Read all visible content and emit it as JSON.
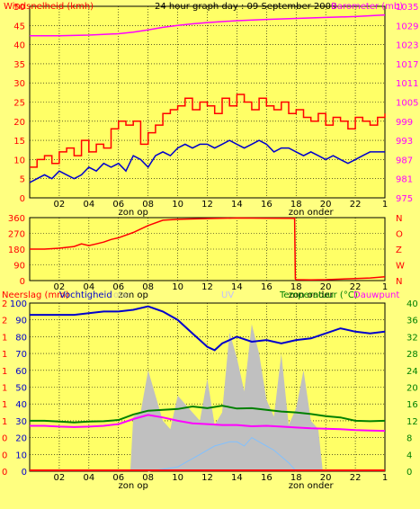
{
  "page": {
    "background": "#ffff80",
    "plot_background": "#ffff66",
    "grid_color": "#000000"
  },
  "chart_data": [
    {
      "type": "line",
      "title": "24 hour graph day : 09 September 2009",
      "left_axis_label": "Windsnelheid (kmh)",
      "right_axis_label": "Barometer (mb)",
      "x_ticks": [
        "02",
        "04",
        "06",
        "08",
        "10",
        "12",
        "14",
        "16",
        "18",
        "20",
        "22",
        "1"
      ],
      "x_annotations": [
        {
          "text": "zon op",
          "near": "07"
        },
        {
          "text": "zon onder",
          "near": "19"
        }
      ],
      "left_ylim": [
        0,
        50
      ],
      "left_ticks": [
        "0",
        "5",
        "10",
        "15",
        "20",
        "25",
        "30",
        "35",
        "40",
        "45",
        "50"
      ],
      "right_ylim": [
        975,
        1035
      ],
      "right_ticks": [
        "975",
        "981",
        "987",
        "993",
        "999",
        "1005",
        "1011",
        "1017",
        "1023",
        "1029",
        "1035"
      ],
      "grid": true,
      "series": [
        {
          "axis": "right",
          "color": "#ff00ff",
          "x": [
            0,
            2,
            4,
            6,
            7,
            8,
            9,
            10,
            11,
            12,
            13,
            14,
            16,
            18,
            20,
            22,
            24
          ],
          "y": [
            1025.8,
            1025.8,
            1026.0,
            1026.4,
            1026.9,
            1027.6,
            1028.4,
            1029.0,
            1029.5,
            1029.9,
            1030.2,
            1030.5,
            1030.9,
            1031.2,
            1031.5,
            1031.8,
            1032.3
          ]
        },
        {
          "axis": "left",
          "color": "#ff0000",
          "x": [
            0,
            0.5,
            1,
            1.5,
            2,
            2.5,
            3,
            3.5,
            4,
            4.5,
            5,
            5.5,
            6,
            6.5,
            7,
            7.5,
            8,
            8.5,
            9,
            9.5,
            10,
            10.5,
            11,
            11.5,
            12,
            12.5,
            13,
            13.5,
            14,
            14.5,
            15,
            15.5,
            16,
            16.5,
            17,
            17.5,
            18,
            18.5,
            19,
            19.5,
            20,
            20.5,
            21,
            21.5,
            22,
            22.5,
            23,
            23.5,
            24
          ],
          "y": [
            8,
            10,
            11,
            9,
            12,
            13,
            11,
            15,
            12,
            14,
            13,
            18,
            20,
            19,
            20,
            14,
            17,
            19,
            22,
            23,
            24,
            26,
            23,
            25,
            24,
            22,
            26,
            24,
            27,
            25,
            23,
            26,
            24,
            23,
            25,
            22,
            23,
            21,
            20,
            22,
            19,
            21,
            20,
            18,
            21,
            20,
            19,
            21,
            22
          ]
        },
        {
          "axis": "left",
          "color": "#0000cc",
          "x": [
            0,
            0.5,
            1,
            1.5,
            2,
            2.5,
            3,
            3.5,
            4,
            4.5,
            5,
            5.5,
            6,
            6.5,
            7,
            7.5,
            8,
            8.5,
            9,
            9.5,
            10,
            10.5,
            11,
            11.5,
            12,
            12.5,
            13,
            13.5,
            14,
            14.5,
            15,
            15.5,
            16,
            16.5,
            17,
            17.5,
            18,
            18.5,
            19,
            19.5,
            20,
            20.5,
            21,
            21.5,
            22,
            22.5,
            23,
            23.5,
            24
          ],
          "y": [
            4,
            5,
            6,
            5,
            7,
            6,
            5,
            6,
            8,
            7,
            9,
            8,
            9,
            7,
            11,
            10,
            8,
            11,
            12,
            11,
            13,
            14,
            13,
            14,
            14,
            13,
            14,
            15,
            14,
            13,
            14,
            15,
            14,
            12,
            13,
            13,
            12,
            11,
            12,
            11,
            10,
            11,
            10,
            9,
            10,
            11,
            12,
            12,
            12
          ]
        }
      ]
    },
    {
      "type": "line",
      "left_ylim": [
        0,
        360
      ],
      "left_ticks": [
        "0",
        "90",
        "180",
        "270",
        "360"
      ],
      "right_ticks": [
        "N",
        "W",
        "Z",
        "O",
        "N"
      ],
      "x_ticks": [
        "02",
        "04",
        "06",
        "08",
        "10",
        "12",
        "14",
        "16",
        "18",
        "20",
        "22",
        "1"
      ],
      "x_annotations": [
        {
          "text": "zon op",
          "near": "07"
        },
        {
          "text": "zon onder",
          "near": "19"
        }
      ],
      "grid": true,
      "series": [
        {
          "color": "#ff0000",
          "x": [
            0,
            1,
            2,
            3,
            3.5,
            4,
            4.5,
            5,
            5.5,
            6,
            7,
            8,
            9,
            10,
            12,
            14,
            16,
            17.9,
            17.95,
            18,
            19,
            20,
            21,
            22,
            23,
            24
          ],
          "y": [
            180,
            180,
            185,
            195,
            210,
            200,
            210,
            220,
            235,
            245,
            275,
            315,
            345,
            350,
            355,
            358,
            357,
            356,
            10,
            5,
            4,
            5,
            8,
            12,
            15,
            22
          ]
        }
      ]
    },
    {
      "type": "line",
      "left_axis_label": "Neerslag (mm)",
      "second_left_label": "Vochtigheid",
      "faint_labels": [
        "olar",
        "UV"
      ],
      "right_axis_label": "Temperatuur (°C)",
      "second_right_label": "Dauwpunt",
      "x_ticks": [
        "02",
        "04",
        "06",
        "08",
        "10",
        "12",
        "14",
        "16",
        "18",
        "20",
        "22",
        "1"
      ],
      "x_annotations": [
        {
          "text": "zon op",
          "near": "07"
        },
        {
          "text": "zon onder",
          "near": "19"
        }
      ],
      "humidity_ticks": [
        "0",
        "10",
        "20",
        "30",
        "40",
        "50",
        "60",
        "70",
        "80",
        "90",
        "100"
      ],
      "humidity_ylim": [
        0,
        100
      ],
      "rain_ticks": [
        "0",
        "0",
        "0",
        "1",
        "1",
        "1",
        "1",
        "1",
        "1",
        "2",
        "2"
      ],
      "right_ticks": [
        "0",
        "4",
        "8",
        "12",
        "16",
        "20",
        "24",
        "28",
        "32",
        "36",
        "40"
      ],
      "right_ylim": [
        0,
        40
      ],
      "grid": true,
      "series": [
        {
          "name": "Vochtigheid",
          "axis": "humidity",
          "color": "#0000cc",
          "x": [
            0,
            1,
            2,
            3,
            4,
            5,
            6,
            7,
            8,
            9,
            10,
            11,
            12,
            12.5,
            13,
            14,
            15,
            16,
            17,
            18,
            19,
            20,
            21,
            22,
            23,
            24
          ],
          "y": [
            93,
            93,
            93,
            93,
            94,
            95,
            95,
            96,
            98,
            95,
            90,
            82,
            74,
            72,
            76,
            80,
            77,
            78,
            76,
            78,
            79,
            82,
            85,
            83,
            82,
            83
          ]
        },
        {
          "name": "Temperatuur",
          "axis": "right",
          "color": "#008000",
          "x": [
            0,
            1,
            2,
            3,
            4,
            5,
            6,
            7,
            8,
            9,
            10,
            11,
            12,
            13,
            14,
            15,
            16,
            17,
            18,
            19,
            20,
            21,
            22,
            23,
            24
          ],
          "y": [
            12,
            12,
            11.8,
            11.6,
            11.8,
            11.9,
            12.2,
            13.5,
            14.4,
            14.6,
            14.8,
            15.4,
            15.0,
            15.6,
            14.9,
            15.0,
            14.6,
            14.2,
            14.0,
            13.6,
            13.1,
            12.8,
            12.0,
            11.9,
            12.0
          ]
        },
        {
          "name": "Dauwpunt",
          "axis": "right",
          "color": "#ff00ff",
          "x": [
            0,
            1,
            2,
            3,
            4,
            5,
            6,
            7,
            8,
            9,
            10,
            11,
            12,
            13,
            14,
            15,
            16,
            17,
            18,
            19,
            20,
            21,
            22,
            23,
            24
          ],
          "y": [
            10.8,
            10.8,
            10.6,
            10.5,
            10.6,
            10.8,
            11.2,
            12.4,
            13.4,
            12.8,
            12.0,
            11.4,
            11.2,
            11.0,
            11.0,
            10.7,
            10.8,
            10.6,
            10.4,
            10.2,
            10.1,
            10.0,
            9.8,
            9.7,
            9.6
          ]
        },
        {
          "name": "Solar",
          "axis": "right",
          "color": "#c0c0c0",
          "type": "area",
          "x": [
            6.8,
            7,
            7.5,
            8,
            8.5,
            9,
            9.5,
            10,
            10.5,
            11,
            11.5,
            12,
            12.5,
            13,
            13.5,
            14,
            14.5,
            15,
            15.5,
            16,
            16.5,
            17,
            17.5,
            18,
            18.5,
            19,
            19.5,
            19.8
          ],
          "y": [
            0,
            13,
            14,
            24,
            18,
            12,
            10,
            18,
            16,
            14,
            12,
            22,
            11,
            14,
            33,
            27,
            19,
            35,
            28,
            17,
            13,
            28,
            11,
            15,
            24,
            12,
            10,
            0
          ]
        },
        {
          "name": "UV",
          "axis": "right",
          "color": "#80c0ff",
          "x": [
            8,
            9,
            10,
            10.5,
            11,
            11.5,
            12,
            12.5,
            13,
            13.5,
            14,
            14.5,
            15,
            15.5,
            16,
            16.5,
            17,
            17.5,
            18
          ],
          "y": [
            0,
            0.5,
            1,
            2,
            3,
            4,
            5,
            6,
            6.5,
            7,
            7,
            6,
            8,
            7,
            6,
            5,
            3.5,
            2,
            0
          ]
        }
      ]
    }
  ]
}
